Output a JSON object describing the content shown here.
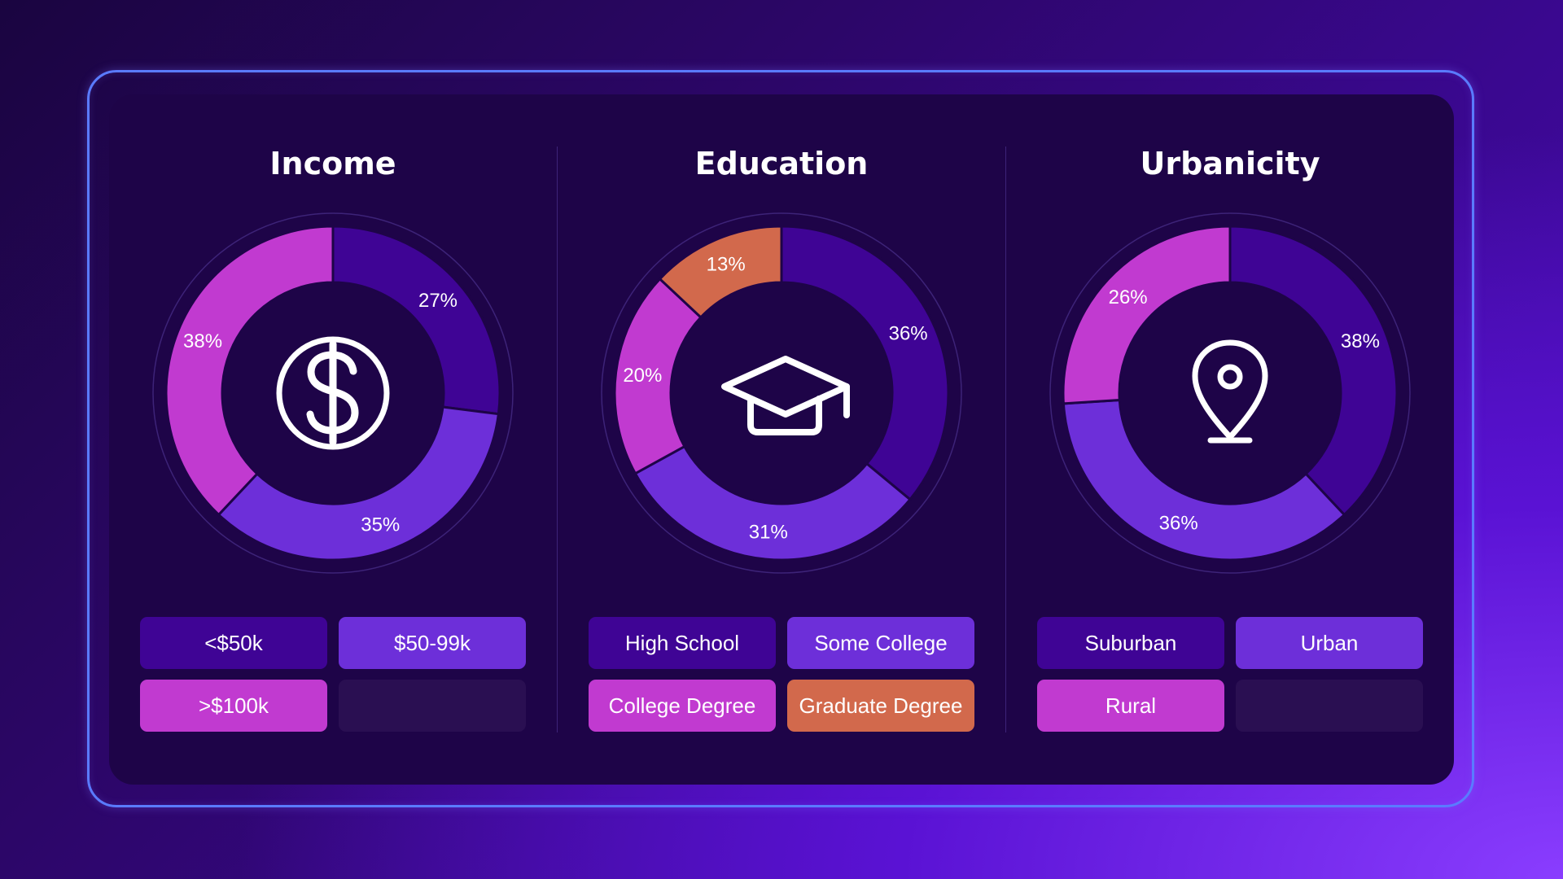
{
  "colors": {
    "deep_purple": "#3f0495",
    "violet": "#6d2fd9",
    "magenta": "#c13ad0",
    "coral": "#d2694c",
    "empty_slot": "#2a0f52"
  },
  "panels": [
    {
      "id": "income",
      "title": "Income",
      "icon": "dollar-icon",
      "legend": [
        "<$50k",
        "$50-99k",
        ">$100k"
      ]
    },
    {
      "id": "education",
      "title": "Education",
      "icon": "graduation-cap-icon",
      "legend": [
        "High School",
        "Some College",
        "College Degree",
        "Graduate Degree"
      ]
    },
    {
      "id": "urbanicity",
      "title": "Urbanicity",
      "icon": "location-pin-icon",
      "legend": [
        "Suburban",
        "Urban",
        "Rural"
      ]
    }
  ],
  "chart_data": [
    {
      "type": "pie",
      "title": "Income",
      "categories": [
        "<$50k",
        "$50-99k",
        ">$100k"
      ],
      "values": [
        27,
        35,
        38
      ],
      "labels": [
        "27%",
        "35%",
        "38%"
      ],
      "colors": [
        "#3f0495",
        "#6d2fd9",
        "#c13ad0"
      ]
    },
    {
      "type": "pie",
      "title": "Education",
      "categories": [
        "High School",
        "Some College",
        "College Degree",
        "Graduate Degree"
      ],
      "values": [
        36,
        31,
        20,
        13
      ],
      "labels": [
        "36%",
        "31%",
        "20%",
        "13%"
      ],
      "colors": [
        "#3f0495",
        "#6d2fd9",
        "#c13ad0",
        "#d2694c"
      ]
    },
    {
      "type": "pie",
      "title": "Urbanicity",
      "categories": [
        "Suburban",
        "Urban",
        "Rural"
      ],
      "values": [
        38,
        36,
        26
      ],
      "labels": [
        "38%",
        "36%",
        "26%"
      ],
      "colors": [
        "#3f0495",
        "#6d2fd9",
        "#c13ad0"
      ]
    }
  ]
}
